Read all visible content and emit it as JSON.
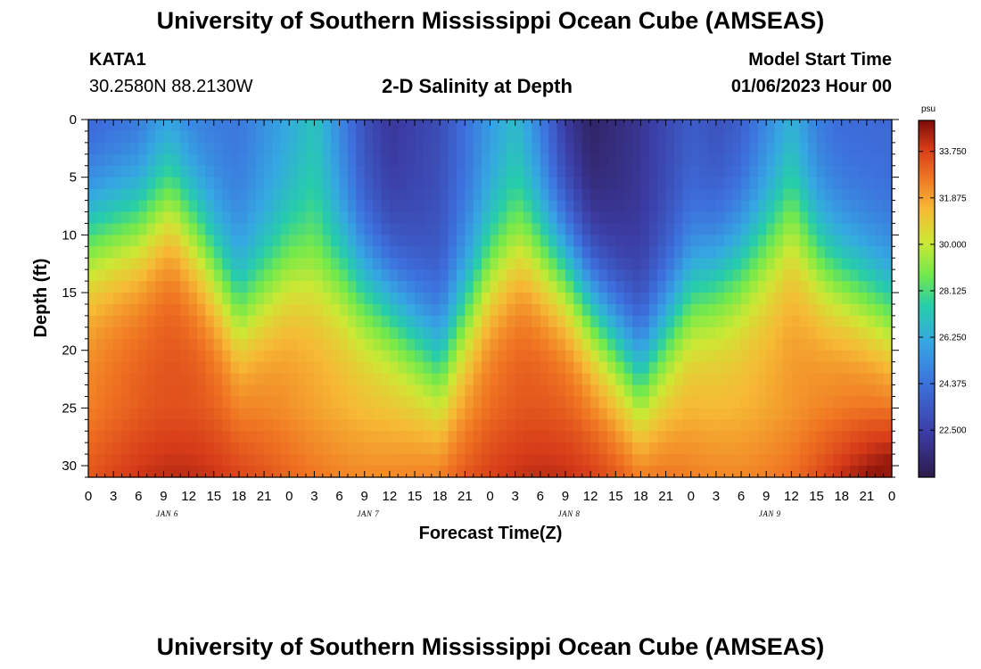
{
  "header": {
    "title": "University of Southern Mississippi Ocean Cube (AMSEAS)",
    "station_id": "KATA1",
    "coordinates": "30.2580N  88.2130W",
    "subtitle": "2-D Salinity at Depth",
    "model_start_label": "Model Start Time",
    "model_start_value": "01/06/2023 Hour 00"
  },
  "footer": {
    "title": "University of Southern Mississippi Ocean Cube (AMSEAS)"
  },
  "chart_data": {
    "type": "heatmap",
    "title": "2-D Salinity at Depth",
    "xlabel": "Forecast Time(Z)",
    "ylabel": "Depth (ft)",
    "x_ticks": [
      "0",
      "3",
      "6",
      "9",
      "12",
      "15",
      "18",
      "21",
      "0",
      "3",
      "6",
      "9",
      "12",
      "15",
      "18",
      "21",
      "0",
      "3",
      "6",
      "9",
      "12",
      "15",
      "18",
      "21",
      "0",
      "3",
      "6",
      "9",
      "12",
      "15",
      "18",
      "21",
      "0"
    ],
    "x_hours_range": [
      0,
      96
    ],
    "day_labels": [
      {
        "label": "JAN 6",
        "hour": 9
      },
      {
        "label": "JAN 7",
        "hour": 33
      },
      {
        "label": "JAN 8",
        "hour": 57
      },
      {
        "label": "JAN 9",
        "hour": 81
      }
    ],
    "y_ticks": [
      0,
      5,
      10,
      15,
      20,
      25,
      30
    ],
    "ylim": [
      0,
      31
    ],
    "colorbar": {
      "unit": "psu",
      "ticks": [
        "33.750",
        "31.875",
        "30.000",
        "28.125",
        "26.250",
        "24.375",
        "22.500"
      ],
      "tick_values": [
        33.75,
        31.875,
        30.0,
        28.125,
        26.25,
        24.375,
        22.5
      ],
      "range": [
        20.6,
        35.0
      ]
    },
    "surface_salinity_by_hour": [
      [
        0,
        23.5
      ],
      [
        6,
        24.0
      ],
      [
        9,
        25.0
      ],
      [
        12,
        24.5
      ],
      [
        18,
        24.5
      ],
      [
        24,
        26.0
      ],
      [
        27,
        27.0
      ],
      [
        30,
        25.0
      ],
      [
        33,
        23.0
      ],
      [
        36,
        22.0
      ],
      [
        42,
        23.0
      ],
      [
        48,
        25.5
      ],
      [
        51,
        26.5
      ],
      [
        54,
        24.5
      ],
      [
        57,
        22.0
      ],
      [
        60,
        21.0
      ],
      [
        66,
        22.0
      ],
      [
        72,
        23.5
      ],
      [
        75,
        23.0
      ],
      [
        78,
        23.5
      ],
      [
        84,
        26.0
      ],
      [
        87,
        24.5
      ],
      [
        90,
        24.0
      ],
      [
        96,
        24.0
      ]
    ],
    "halocline_depth_ft_by_hour": [
      [
        0,
        10.0
      ],
      [
        6,
        9.0
      ],
      [
        10,
        7.0
      ],
      [
        13,
        10.0
      ],
      [
        18,
        16.5
      ],
      [
        21,
        14.5
      ],
      [
        24,
        12.5
      ],
      [
        30,
        13.0
      ],
      [
        36,
        16.0
      ],
      [
        42,
        21.0
      ],
      [
        48,
        13.0
      ],
      [
        52,
        10.5
      ],
      [
        57,
        13.0
      ],
      [
        66,
        22.0
      ],
      [
        72,
        15.0
      ],
      [
        78,
        12.5
      ],
      [
        84,
        8.5
      ],
      [
        88,
        12.5
      ],
      [
        96,
        17.0
      ]
    ],
    "bottom_salinity_max": 34.9
  }
}
